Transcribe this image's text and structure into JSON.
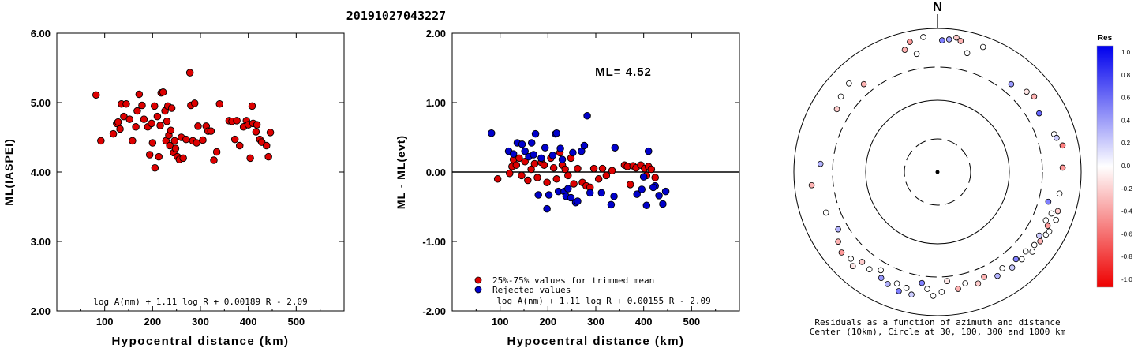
{
  "figure": {
    "title": "20191027043227"
  },
  "chart_data": [
    {
      "type": "scatter",
      "ylabel": "ML(IASPEI)",
      "xlabel": "Hypocentral distance (km)",
      "xlim": [
        0,
        600
      ],
      "ylim": [
        2.0,
        6.0
      ],
      "xticks": [
        "100",
        "200",
        "300",
        "400",
        "500"
      ],
      "yticks": [
        "2.00",
        "3.00",
        "4.00",
        "5.00",
        "6.00"
      ],
      "formula": "log A(nm) + 1.11 log R + 0.00189 R - 2.09",
      "series": [
        {
          "color": "#dd0000",
          "points": [
            [
              82,
              5.11
            ],
            [
              92,
              4.45
            ],
            [
              118,
              4.55
            ],
            [
              125,
              4.7
            ],
            [
              128,
              4.72
            ],
            [
              132,
              4.62
            ],
            [
              135,
              4.98
            ],
            [
              140,
              4.8
            ],
            [
              145,
              4.98
            ],
            [
              152,
              4.76
            ],
            [
              158,
              4.45
            ],
            [
              165,
              4.65
            ],
            [
              168,
              4.88
            ],
            [
              172,
              5.12
            ],
            [
              178,
              4.96
            ],
            [
              182,
              4.76
            ],
            [
              190,
              4.65
            ],
            [
              194,
              4.25
            ],
            [
              198,
              4.7
            ],
            [
              200,
              4.42
            ],
            [
              204,
              4.95
            ],
            [
              205,
              4.06
            ],
            [
              210,
              4.8
            ],
            [
              213,
              4.22
            ],
            [
              216,
              4.67
            ],
            [
              218,
              5.14
            ],
            [
              222,
              5.15
            ],
            [
              226,
              4.88
            ],
            [
              228,
              4.45
            ],
            [
              230,
              4.73
            ],
            [
              232,
              4.95
            ],
            [
              234,
              4.53
            ],
            [
              236,
              4.38
            ],
            [
              238,
              4.6
            ],
            [
              240,
              4.92
            ],
            [
              244,
              4.28
            ],
            [
              246,
              4.45
            ],
            [
              248,
              4.34
            ],
            [
              252,
              4.22
            ],
            [
              256,
              4.18
            ],
            [
              260,
              4.5
            ],
            [
              264,
              4.2
            ],
            [
              270,
              4.47
            ],
            [
              278,
              5.43
            ],
            [
              280,
              4.96
            ],
            [
              284,
              4.45
            ],
            [
              288,
              4.99
            ],
            [
              292,
              4.42
            ],
            [
              295,
              4.66
            ],
            [
              305,
              4.46
            ],
            [
              312,
              4.66
            ],
            [
              316,
              4.59
            ],
            [
              322,
              4.59
            ],
            [
              328,
              4.17
            ],
            [
              334,
              4.29
            ],
            [
              340,
              4.98
            ],
            [
              360,
              4.74
            ],
            [
              366,
              4.73
            ],
            [
              372,
              4.47
            ],
            [
              376,
              4.74
            ],
            [
              382,
              4.38
            ],
            [
              390,
              4.65
            ],
            [
              396,
              4.74
            ],
            [
              400,
              4.68
            ],
            [
              404,
              4.2
            ],
            [
              408,
              4.95
            ],
            [
              410,
              4.7
            ],
            [
              416,
              4.58
            ],
            [
              418,
              4.68
            ],
            [
              424,
              4.47
            ],
            [
              428,
              4.43
            ],
            [
              438,
              4.38
            ],
            [
              442,
              4.22
            ],
            [
              446,
              4.57
            ]
          ]
        }
      ]
    },
    {
      "type": "scatter",
      "ylabel": "ML - ML(evt)",
      "xlabel": "Hypocentral distance (km)",
      "xlim": [
        0,
        600
      ],
      "ylim": [
        -2.0,
        2.0
      ],
      "xticks": [
        "100",
        "200",
        "300",
        "400",
        "500"
      ],
      "yticks": [
        "-2.00",
        "-1.00",
        "0.00",
        "1.00",
        "2.00"
      ],
      "annotation": "ML= 4.52",
      "formula": "log A(nm) + 1.11 log R + 0.00155 R - 2.09",
      "legend": {
        "placement": "bottom-left",
        "items": [
          {
            "label": "25%-75% values for trimmed mean",
            "color": "#dd0000"
          },
          {
            "label": "Rejected values",
            "color": "#0000cc"
          }
        ]
      },
      "series": [
        {
          "name": "25%-75% values for trimmed mean",
          "color": "#dd0000",
          "points": [
            [
              95,
              -0.1
            ],
            [
              120,
              -0.02
            ],
            [
              125,
              0.08
            ],
            [
              128,
              0.18
            ],
            [
              134,
              0.1
            ],
            [
              140,
              0.2
            ],
            [
              145,
              -0.05
            ],
            [
              152,
              0.15
            ],
            [
              158,
              -0.12
            ],
            [
              165,
              0.04
            ],
            [
              172,
              0.12
            ],
            [
              178,
              -0.08
            ],
            [
              186,
              0.14
            ],
            [
              192,
              0.1
            ],
            [
              198,
              -0.15
            ],
            [
              206,
              0.2
            ],
            [
              212,
              0.06
            ],
            [
              218,
              -0.1
            ],
            [
              225,
              0.28
            ],
            [
              230,
              0.1
            ],
            [
              236,
              0.04
            ],
            [
              242,
              -0.05
            ],
            [
              248,
              0.2
            ],
            [
              254,
              -0.17
            ],
            [
              262,
              0.05
            ],
            [
              272,
              -0.15
            ],
            [
              280,
              -0.2
            ],
            [
              288,
              -0.22
            ],
            [
              296,
              0.05
            ],
            [
              306,
              -0.1
            ],
            [
              314,
              0.05
            ],
            [
              322,
              -0.05
            ],
            [
              334,
              0.02
            ],
            [
              360,
              0.1
            ],
            [
              366,
              0.08
            ],
            [
              372,
              -0.18
            ],
            [
              378,
              0.09
            ],
            [
              384,
              0.06
            ],
            [
              394,
              0.1
            ],
            [
              402,
              0.05
            ],
            [
              406,
              -0.05
            ],
            [
              410,
              0.08
            ],
            [
              416,
              0.04
            ],
            [
              424,
              -0.08
            ]
          ]
        },
        {
          "name": "Rejected values",
          "color": "#0000cc",
          "points": [
            [
              82,
              0.56
            ],
            [
              118,
              0.3
            ],
            [
              128,
              0.26
            ],
            [
              136,
              0.42
            ],
            [
              146,
              0.4
            ],
            [
              152,
              0.3
            ],
            [
              160,
              0.22
            ],
            [
              166,
              0.42
            ],
            [
              170,
              0.25
            ],
            [
              174,
              0.55
            ],
            [
              180,
              -0.33
            ],
            [
              186,
              0.2
            ],
            [
              194,
              0.35
            ],
            [
              198,
              -0.53
            ],
            [
              202,
              -0.33
            ],
            [
              210,
              0.24
            ],
            [
              216,
              0.55
            ],
            [
              218,
              0.56
            ],
            [
              222,
              -0.28
            ],
            [
              226,
              0.34
            ],
            [
              230,
              0.18
            ],
            [
              234,
              -0.28
            ],
            [
              238,
              -0.35
            ],
            [
              242,
              -0.24
            ],
            [
              248,
              -0.37
            ],
            [
              252,
              0.28
            ],
            [
              258,
              -0.44
            ],
            [
              262,
              -0.42
            ],
            [
              270,
              0.3
            ],
            [
              276,
              0.38
            ],
            [
              282,
              0.81
            ],
            [
              288,
              -0.3
            ],
            [
              312,
              -0.3
            ],
            [
              332,
              -0.47
            ],
            [
              338,
              -0.35
            ],
            [
              340,
              0.35
            ],
            [
              396,
              -0.25
            ],
            [
              400,
              -0.07
            ],
            [
              406,
              -0.48
            ],
            [
              410,
              0.3
            ],
            [
              424,
              -0.2
            ],
            [
              432,
              -0.34
            ],
            [
              440,
              -0.46
            ],
            [
              446,
              -0.28
            ],
            [
              420,
              -0.22
            ],
            [
              386,
              -0.32
            ]
          ]
        }
      ]
    },
    {
      "type": "polar-scatter",
      "north_label": "N",
      "caption_line1": "Residuals as a function of azimuth and distance",
      "caption_line2": "Center (10km), Circle at 30, 100, 300 and 1000 km",
      "rings_km": [
        30,
        100,
        300,
        1000
      ],
      "colorbar": {
        "title": "Res",
        "ticks": [
          "1.0",
          "0.8",
          "0.6",
          "0.4",
          "0.2",
          "0.0",
          "-0.2",
          "-0.4",
          "-0.6",
          "-0.8",
          "-1.0"
        ],
        "max_color": "#0000ee",
        "zero_color": "#ffffff",
        "min_color": "#ee0000"
      },
      "stations": [
        {
          "az": 5,
          "dist": 240,
          "res": 0.35
        },
        {
          "az": 2,
          "dist": 235,
          "res": 0.5
        },
        {
          "az": 8,
          "dist": 250,
          "res": -0.2
        },
        {
          "az": 10,
          "dist": 240,
          "res": -0.3
        },
        {
          "az": -6,
          "dist": 250,
          "res": 0.0
        },
        {
          "az": -12,
          "dist": 240,
          "res": -0.4
        },
        {
          "az": -15,
          "dist": 215,
          "res": -0.3
        },
        {
          "az": -10,
          "dist": 190,
          "res": 0.0
        },
        {
          "az": 14,
          "dist": 200,
          "res": 0.0
        },
        {
          "az": 20,
          "dist": 240,
          "res": 0.0
        },
        {
          "az": -40,
          "dist": 170,
          "res": -0.3
        },
        {
          "az": -45,
          "dist": 210,
          "res": 0.0
        },
        {
          "az": -52,
          "dist": 200,
          "res": 0.0
        },
        {
          "az": -58,
          "dist": 185,
          "res": -0.2
        },
        {
          "az": 40,
          "dist": 170,
          "res": 0.4
        },
        {
          "az": 48,
          "dist": 190,
          "res": -0.1
        },
        {
          "az": 52,
          "dist": 200,
          "res": -0.3
        },
        {
          "az": 60,
          "dist": 180,
          "res": 0.6
        },
        {
          "az": 72,
          "dist": 200,
          "res": 0.0
        },
        {
          "az": 74,
          "dist": 205,
          "res": 0.2
        },
        {
          "az": 78,
          "dist": 220,
          "res": -0.5
        },
        {
          "az": 88,
          "dist": 210,
          "res": -0.4
        },
        {
          "az": -86,
          "dist": 180,
          "res": 0.3
        },
        {
          "az": -96,
          "dist": 215,
          "res": -0.3
        },
        {
          "az": -110,
          "dist": 185,
          "res": 0.0
        },
        {
          "az": -120,
          "dist": 170,
          "res": 0.3
        },
        {
          "az": -125,
          "dist": 195,
          "res": -0.3
        },
        {
          "az": -130,
          "dist": 210,
          "res": -0.4
        },
        {
          "az": -135,
          "dist": 200,
          "res": 0.0
        },
        {
          "az": -138,
          "dist": 215,
          "res": -0.1
        },
        {
          "az": -140,
          "dist": 180,
          "res": -0.2
        },
        {
          "az": -145,
          "dist": 185,
          "res": 0.0
        },
        {
          "az": -150,
          "dist": 165,
          "res": 0.0
        },
        {
          "az": -152,
          "dist": 190,
          "res": 0.4
        },
        {
          "az": -156,
          "dist": 200,
          "res": 0.3
        },
        {
          "az": -160,
          "dist": 185,
          "res": 0.0
        },
        {
          "az": -162,
          "dist": 210,
          "res": 0.5
        },
        {
          "az": -165,
          "dist": 190,
          "res": 0.0
        },
        {
          "az": -168,
          "dist": 210,
          "res": 0.2
        },
        {
          "az": -172,
          "dist": 160,
          "res": 0.5
        },
        {
          "az": -175,
          "dist": 180,
          "res": 0.0
        },
        {
          "az": -178,
          "dist": 205,
          "res": 0.0
        },
        {
          "az": 178,
          "dist": 190,
          "res": 0.0
        },
        {
          "az": 175,
          "dist": 150,
          "res": -0.1
        },
        {
          "az": 170,
          "dist": 185,
          "res": -0.3
        },
        {
          "az": 166,
          "dist": 170,
          "res": 0.0
        },
        {
          "az": 160,
          "dist": 185,
          "res": -0.2
        },
        {
          "az": 156,
          "dist": 170,
          "res": -0.3
        },
        {
          "az": 150,
          "dist": 190,
          "res": 0.3
        },
        {
          "az": 146,
          "dist": 175,
          "res": 0.0
        },
        {
          "az": 142,
          "dist": 195,
          "res": 0.2
        },
        {
          "az": 138,
          "dist": 180,
          "res": 0.5
        },
        {
          "az": 136,
          "dist": 195,
          "res": 0.0
        },
        {
          "az": 132,
          "dist": 185,
          "res": 0.0
        },
        {
          "az": 130,
          "dist": 205,
          "res": 0.0
        },
        {
          "az": 127,
          "dist": 195,
          "res": 0.0
        },
        {
          "az": 124,
          "dist": 205,
          "res": -0.3
        },
        {
          "az": 122,
          "dist": 190,
          "res": 0.2
        },
        {
          "az": 120,
          "dist": 210,
          "res": 0.0
        },
        {
          "az": 118,
          "dist": 215,
          "res": 0.0
        },
        {
          "az": 116,
          "dist": 200,
          "res": -0.4
        },
        {
          "az": 114,
          "dist": 185,
          "res": 0.0
        },
        {
          "az": 112,
          "dist": 220,
          "res": 0.0
        },
        {
          "az": 110,
          "dist": 195,
          "res": 0.0
        },
        {
          "az": 108,
          "dist": 215,
          "res": -0.2
        },
        {
          "az": 105,
          "dist": 170,
          "res": 0.5
        },
        {
          "az": 100,
          "dist": 205,
          "res": 0.0
        }
      ]
    }
  ]
}
